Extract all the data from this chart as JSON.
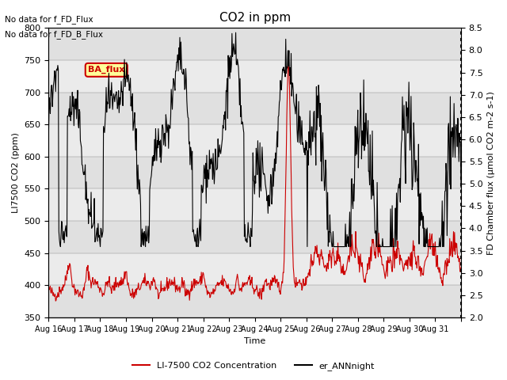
{
  "title": "CO2 in ppm",
  "xlabel": "Time",
  "ylabel_left": "LI7500 CO2 (ppm)",
  "ylabel_right": "FD Chamber flux (μmol CO2 m-2 s-1)",
  "annotation_line1": "No data for f_FD_Flux",
  "annotation_line2": "No data for f_FD_B_Flux",
  "ba_flux_label": "BA_flux",
  "ylim_left": [
    350,
    800
  ],
  "ylim_right": [
    2.0,
    8.5
  ],
  "yticks_left": [
    350,
    400,
    450,
    500,
    550,
    600,
    650,
    700,
    750,
    800
  ],
  "yticks_right": [
    2.0,
    2.5,
    3.0,
    3.5,
    4.0,
    4.5,
    5.0,
    5.5,
    6.0,
    6.5,
    7.0,
    7.5,
    8.0,
    8.5
  ],
  "xtick_positions": [
    0,
    1,
    2,
    3,
    4,
    5,
    6,
    7,
    8,
    9,
    10,
    11,
    12,
    13,
    14,
    15,
    16
  ],
  "xtick_labels": [
    "Aug 16",
    "Aug 17",
    "Aug 18",
    "Aug 19",
    "Aug 20",
    "Aug 21",
    "Aug 22",
    "Aug 23",
    "Aug 24",
    "Aug 25",
    "Aug 26",
    "Aug 27",
    "Aug 28",
    "Aug 29",
    "Aug 30",
    "Aug 31",
    ""
  ],
  "background_color": "#ffffff",
  "band_colors": [
    "#e0e0e0",
    "#ebebeb"
  ],
  "red_line_color": "#cc0000",
  "black_line_color": "#000000",
  "legend_label_red": "LI-7500 CO2 Concentration",
  "legend_label_black": "er_ANNnight",
  "n_days": 16,
  "pts_per_day": 48
}
